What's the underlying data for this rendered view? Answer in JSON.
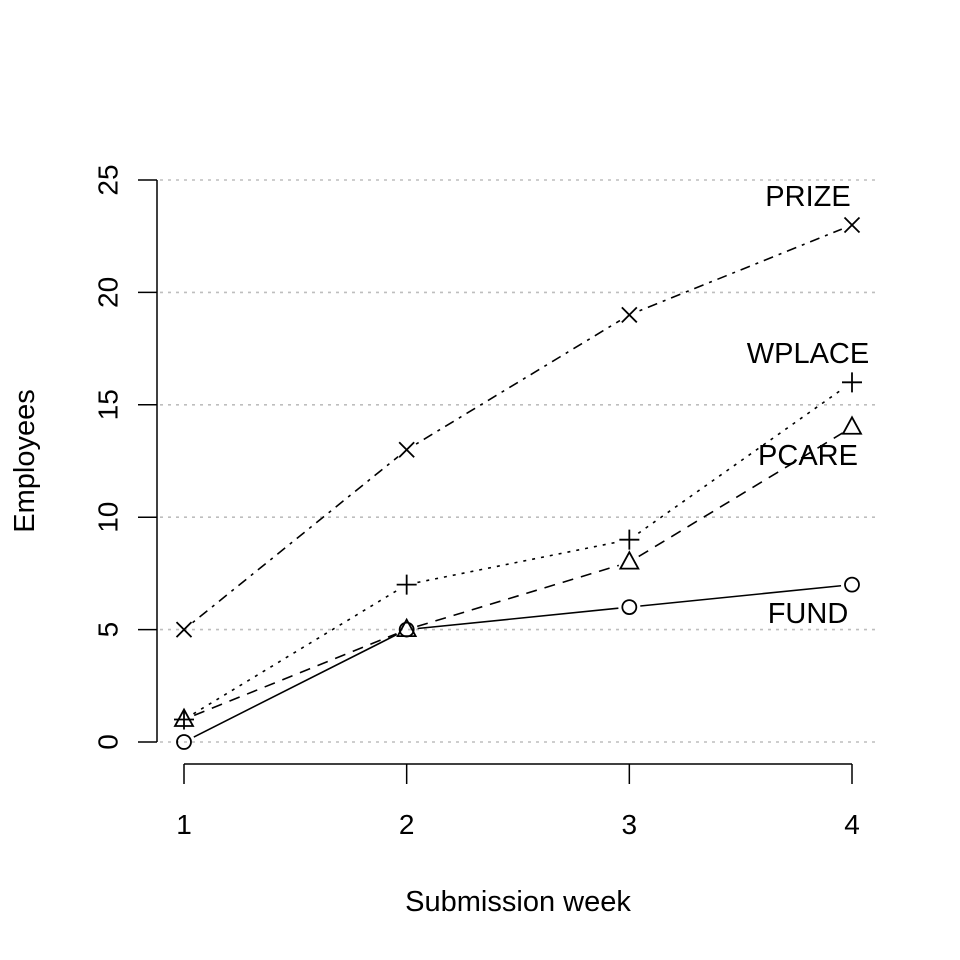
{
  "chart_data": {
    "type": "line",
    "xlabel": "Submission week",
    "ylabel": "Employees",
    "x": [
      1,
      2,
      3,
      4
    ],
    "xticks": [
      "1",
      "2",
      "3",
      "4"
    ],
    "yticks": [
      "0",
      "5",
      "10",
      "15",
      "20",
      "25"
    ],
    "ylim": [
      0,
      25
    ],
    "xlim": [
      1,
      4
    ],
    "grid": "horizontal dotted",
    "legend": "direct labels at line ends",
    "colors": {
      "line": "#000000",
      "grid": "#bebebe"
    },
    "series": [
      {
        "name": "PRIZE",
        "values": [
          5,
          13,
          19,
          23
        ],
        "marker": "x",
        "dash": "dotdash"
      },
      {
        "name": "WPLACE",
        "values": [
          1,
          7,
          9,
          16
        ],
        "marker": "plus",
        "dash": "dotted"
      },
      {
        "name": "PCARE",
        "values": [
          1,
          5,
          8,
          14
        ],
        "marker": "triangle",
        "dash": "dashed"
      },
      {
        "name": "FUND",
        "values": [
          0,
          5,
          6,
          7
        ],
        "marker": "circle",
        "dash": "solid"
      }
    ]
  }
}
